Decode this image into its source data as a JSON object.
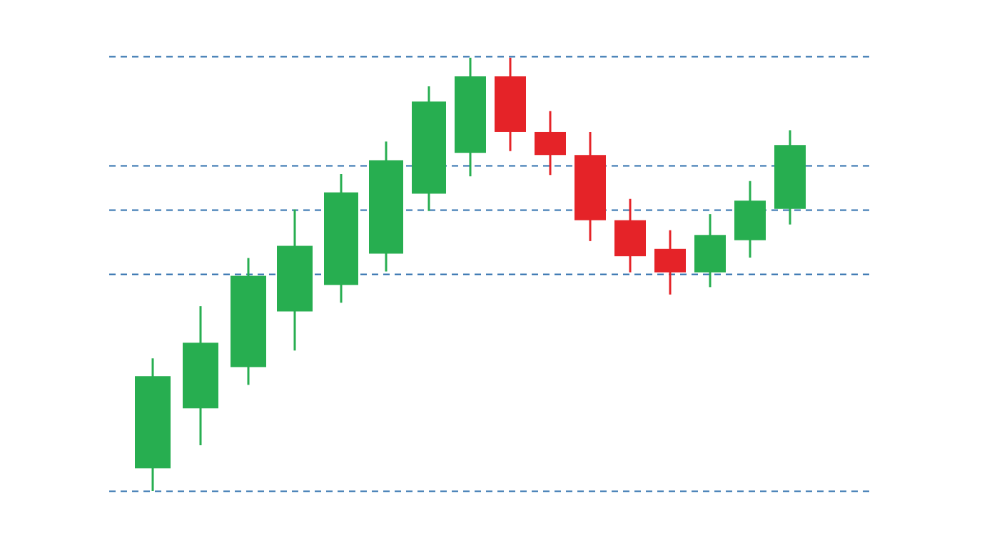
{
  "chart_data": {
    "type": "candlestick",
    "title": "",
    "xlabel": "",
    "ylabel": "",
    "ylim": [
      0,
      100
    ],
    "reference_levels": [
      0,
      50,
      64.7,
      74.9,
      100
    ],
    "candles": [
      {
        "open": 5.2,
        "high": 30.5,
        "low": 0,
        "close": 26.4
      },
      {
        "open": 19.0,
        "high": 42.5,
        "low": 10.5,
        "close": 34.1
      },
      {
        "open": 28.5,
        "high": 53.6,
        "low": 24.4,
        "close": 49.5
      },
      {
        "open": 41.3,
        "high": 64.8,
        "low": 32.3,
        "close": 56.4
      },
      {
        "open": 47.4,
        "high": 72.9,
        "low": 43.3,
        "close": 68.7
      },
      {
        "open": 54.6,
        "high": 80.4,
        "low": 50.5,
        "close": 76.1
      },
      {
        "open": 68.4,
        "high": 93.1,
        "low": 64.4,
        "close": 89.6
      },
      {
        "open": 77.8,
        "high": 99.7,
        "low": 72.4,
        "close": 95.4
      },
      {
        "open": 95.4,
        "high": 99.7,
        "low": 78.2,
        "close": 82.6
      },
      {
        "open": 82.6,
        "high": 87.4,
        "low": 72.7,
        "close": 77.3
      },
      {
        "open": 77.3,
        "high": 82.6,
        "low": 57.5,
        "close": 62.3
      },
      {
        "open": 62.3,
        "high": 67.2,
        "low": 50.3,
        "close": 54.0
      },
      {
        "open": 55.7,
        "high": 60.0,
        "low": 45.2,
        "close": 50.3
      },
      {
        "open": 50.3,
        "high": 63.7,
        "low": 46.9,
        "close": 58.9
      },
      {
        "open": 57.7,
        "high": 71.3,
        "low": 53.7,
        "close": 66.8
      },
      {
        "open": 64.9,
        "high": 83.0,
        "low": 61.3,
        "close": 79.6
      }
    ],
    "colors": {
      "up": "#27ae50",
      "down": "#e52328",
      "reference_line": "#2e6fad"
    },
    "grid": false,
    "legend": "none"
  }
}
